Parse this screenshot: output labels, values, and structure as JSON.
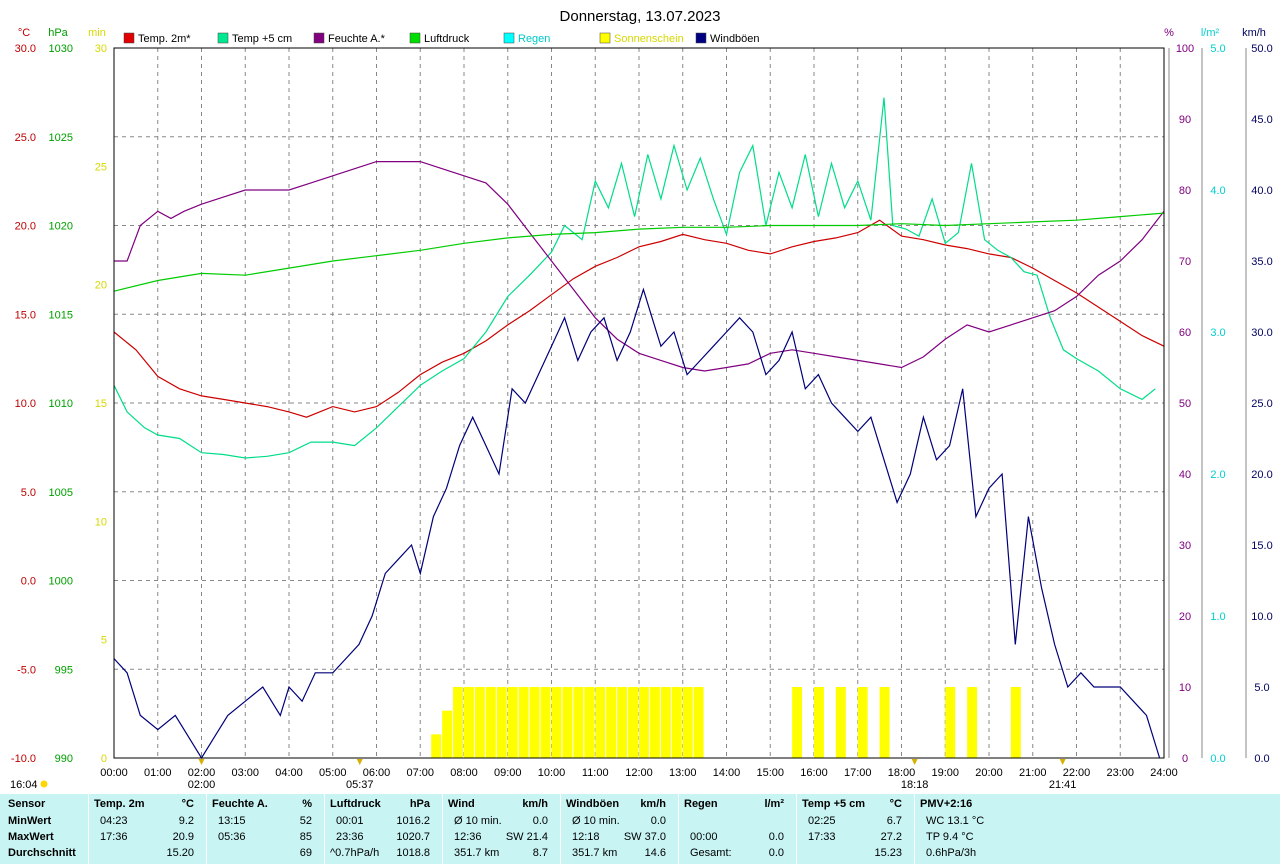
{
  "chart_data": {
    "type": "line",
    "title": "Donnerstag, 13.07.2023",
    "x_ticks": [
      "00:00",
      "01:00",
      "02:00",
      "03:00",
      "04:00",
      "05:00",
      "06:00",
      "07:00",
      "08:00",
      "09:00",
      "10:00",
      "11:00",
      "12:00",
      "13:00",
      "14:00",
      "15:00",
      "16:00",
      "17:00",
      "18:00",
      "19:00",
      "20:00",
      "21:00",
      "22:00",
      "23:00",
      "24:00"
    ],
    "xlim": [
      0,
      24
    ],
    "axes": {
      "temp": {
        "unit": "°C",
        "range": [
          -10,
          30
        ],
        "ticks": [
          "30.0",
          "25.0",
          "20.0",
          "15.0",
          "10.0",
          "5.0",
          "0.0",
          "-5.0",
          "-10.0"
        ],
        "color": "#c00000"
      },
      "pressure": {
        "unit": "hPa",
        "range": [
          990,
          1030
        ],
        "ticks": [
          "1030",
          "1025",
          "1020",
          "1015",
          "1010",
          "1005",
          "1000",
          "995",
          "990"
        ],
        "color": "#00a000"
      },
      "minutes": {
        "unit": "min",
        "range": [
          0,
          30
        ],
        "ticks": [
          "30",
          "25",
          "20",
          "15",
          "10",
          "5",
          "0"
        ],
        "color": "#d8d800"
      },
      "humidity": {
        "unit": "%",
        "range": [
          0,
          100
        ],
        "ticks": [
          "100",
          "90",
          "80",
          "70",
          "60",
          "50",
          "40",
          "30",
          "20",
          "10",
          "0"
        ],
        "color": "#800080"
      },
      "rain": {
        "unit": "l/m²",
        "range": [
          0,
          5
        ],
        "ticks": [
          "5.0",
          "4.0",
          "3.0",
          "2.0",
          "1.0",
          "0.0"
        ],
        "color": "#00d0d0"
      },
      "wind": {
        "unit": "km/h",
        "range": [
          0,
          50
        ],
        "ticks": [
          "50.0",
          "45.0",
          "40.0",
          "35.0",
          "30.0",
          "25.0",
          "20.0",
          "15.0",
          "10.0",
          "5.0",
          "0.0"
        ],
        "color": "#000060"
      }
    },
    "legend": [
      "Temp. 2m*",
      "Temp +5 cm",
      "Feuchte A.*",
      "Luftdruck",
      "Regen",
      "Sonnenschein",
      "Windböen"
    ],
    "series": [
      {
        "name": "Temp. 2m*",
        "axis": "temp",
        "color": "#cc0000",
        "x": [
          0,
          0.5,
          1,
          1.5,
          2,
          2.5,
          3,
          3.5,
          4,
          4.4,
          5,
          5.5,
          6,
          6.5,
          7,
          7.5,
          8,
          8.5,
          9,
          9.5,
          10,
          10.5,
          11,
          11.5,
          12,
          12.5,
          13,
          13.5,
          14,
          14.5,
          15,
          15.5,
          16,
          16.5,
          17,
          17.5,
          18,
          18.5,
          19,
          19.5,
          20,
          20.5,
          21,
          21.5,
          22,
          22.5,
          23,
          23.5,
          24
        ],
        "y": [
          14,
          13,
          11.5,
          10.8,
          10.4,
          10.2,
          10,
          9.8,
          9.5,
          9.2,
          9.8,
          9.5,
          9.8,
          10.6,
          11.6,
          12.3,
          12.8,
          13.5,
          14.4,
          15.2,
          16.1,
          17,
          17.7,
          18.2,
          18.8,
          19.1,
          19.5,
          19.2,
          19,
          18.6,
          18.4,
          18.8,
          19.1,
          19.3,
          19.6,
          20.3,
          19.4,
          19.2,
          18.9,
          18.7,
          18.4,
          18.2,
          17.6,
          16.9,
          16.2,
          15.4,
          14.6,
          13.8,
          13.2
        ]
      },
      {
        "name": "Temp +5 cm",
        "axis": "temp",
        "color": "#00dd88",
        "x": [
          0,
          0.3,
          0.7,
          1,
          1.5,
          2,
          2.5,
          3,
          3.5,
          4,
          4.5,
          5,
          5.5,
          6,
          6.5,
          7,
          7.5,
          8,
          8.5,
          9,
          9.5,
          10,
          10.3,
          10.7,
          11,
          11.3,
          11.6,
          11.9,
          12.2,
          12.5,
          12.8,
          13.1,
          13.4,
          13.7,
          14,
          14.3,
          14.6,
          14.9,
          15.2,
          15.5,
          15.8,
          16.1,
          16.4,
          16.7,
          17,
          17.3,
          17.6,
          17.8,
          18.1,
          18.4,
          18.7,
          19,
          19.3,
          19.6,
          19.9,
          20.2,
          20.5,
          20.8,
          21.1,
          21.4,
          21.7,
          22,
          22.5,
          23,
          23.5,
          23.8
        ],
        "y": [
          11,
          9.5,
          8.6,
          8.2,
          8,
          7.2,
          7.1,
          6.9,
          7,
          7.2,
          7.8,
          7.8,
          7.6,
          8.6,
          9.8,
          11,
          11.8,
          12.5,
          14,
          16,
          17.2,
          18.5,
          20,
          19.2,
          22.5,
          21,
          23.5,
          20.5,
          24,
          21.5,
          24.5,
          22,
          23.8,
          21.5,
          19.5,
          23,
          24.5,
          20,
          23,
          21,
          24,
          20.5,
          23.5,
          21,
          22.5,
          20.3,
          27.2,
          20,
          19.8,
          19.4,
          21.5,
          19,
          19.6,
          23.5,
          19.2,
          18.6,
          18.2,
          17.4,
          17.2,
          14.8,
          13,
          12.5,
          11.8,
          10.8,
          10.2,
          10.8
        ]
      },
      {
        "name": "Feuchte A.*",
        "axis": "humidity",
        "color": "#800080",
        "x": [
          0,
          0.3,
          0.6,
          1,
          1.3,
          1.6,
          2,
          2.5,
          3,
          3.5,
          4,
          4.5,
          5,
          5.5,
          6,
          6.5,
          7,
          7.5,
          8,
          8.5,
          9,
          9.5,
          10,
          10.5,
          11,
          11.5,
          12,
          12.5,
          13,
          13.5,
          14,
          14.5,
          15,
          15.5,
          16,
          16.5,
          17,
          17.5,
          18,
          18.5,
          19,
          19.5,
          20,
          20.5,
          21,
          21.5,
          22,
          22.5,
          23,
          23.5,
          24
        ],
        "y": [
          70,
          70,
          75,
          77,
          76,
          77,
          78,
          79,
          80,
          80,
          80,
          81,
          82,
          83,
          84,
          84,
          84,
          83,
          82,
          81,
          78,
          74,
          70,
          66,
          62,
          59,
          57,
          56,
          55,
          54.5,
          55,
          55.5,
          57,
          57.5,
          57,
          56.5,
          56,
          55.5,
          55,
          56.5,
          59,
          61,
          60,
          61,
          62,
          63,
          65,
          68,
          70,
          73,
          77
        ]
      },
      {
        "name": "Luftdruck",
        "axis": "pressure",
        "color": "#00cc00",
        "x": [
          0,
          1,
          2,
          3,
          4,
          5,
          6,
          7,
          8,
          9,
          10,
          11,
          12,
          13,
          14,
          15,
          16,
          17,
          18,
          19,
          20,
          21,
          22,
          23,
          24
        ],
        "y": [
          1016.3,
          1016.9,
          1017.3,
          1017.2,
          1017.6,
          1018,
          1018.3,
          1018.6,
          1019,
          1019.3,
          1019.5,
          1019.6,
          1019.8,
          1019.9,
          1019.9,
          1020,
          1020,
          1020,
          1020.1,
          1020,
          1020.1,
          1020.2,
          1020.3,
          1020.5,
          1020.7
        ]
      },
      {
        "name": "Windböen",
        "axis": "wind",
        "color": "#00007a",
        "x": [
          0,
          0.3,
          0.6,
          1,
          1.4,
          1.8,
          2,
          2.3,
          2.6,
          3,
          3.4,
          3.8,
          4,
          4.3,
          4.6,
          5,
          5.3,
          5.6,
          5.9,
          6.2,
          6.5,
          6.8,
          7,
          7.3,
          7.6,
          7.9,
          8.2,
          8.5,
          8.8,
          9.1,
          9.4,
          9.7,
          10,
          10.3,
          10.6,
          10.9,
          11.2,
          11.5,
          11.8,
          12.1,
          12.3,
          12.5,
          12.8,
          13.1,
          13.4,
          13.7,
          14,
          14.3,
          14.6,
          14.9,
          15.2,
          15.5,
          15.8,
          16.1,
          16.4,
          16.7,
          17,
          17.3,
          17.6,
          17.9,
          18.2,
          18.5,
          18.8,
          19.1,
          19.4,
          19.7,
          20,
          20.3,
          20.6,
          20.9,
          21.2,
          21.5,
          21.8,
          22.1,
          22.4,
          22.7,
          23,
          23.3,
          23.6,
          23.9
        ],
        "y": [
          7,
          6,
          3,
          2,
          3,
          1,
          0,
          1.5,
          3,
          4,
          5,
          3,
          5,
          4,
          6,
          6,
          7,
          8,
          10,
          13,
          14,
          15,
          13,
          17,
          19,
          22,
          24,
          22,
          20,
          26,
          25,
          27,
          29,
          31,
          28,
          30,
          31,
          28,
          30,
          33,
          31,
          29,
          30,
          27,
          28,
          29,
          30,
          31,
          30,
          27,
          28,
          30,
          26,
          27,
          25,
          24,
          23,
          24,
          21,
          18,
          20,
          24,
          21,
          22,
          26,
          17,
          19,
          20,
          8,
          17,
          12,
          8,
          5,
          6,
          5,
          5,
          5,
          4,
          3,
          0
        ]
      }
    ],
    "bars": [
      {
        "name": "Sonnenschein",
        "axis": "minutes",
        "color": "#ffff00",
        "x": [
          7.25,
          7.5,
          7.75,
          8,
          8.25,
          8.5,
          8.75,
          9,
          9.25,
          9.5,
          9.75,
          10,
          10.25,
          10.5,
          10.75,
          11,
          11.25,
          11.5,
          11.75,
          12,
          12.25,
          12.5,
          12.75,
          13,
          13.25,
          15.5,
          16,
          16.5,
          17,
          17.5,
          19,
          19.5,
          20.5
        ],
        "values": [
          1,
          2,
          3,
          3,
          3,
          3,
          3,
          3,
          3,
          3,
          3,
          3,
          3,
          3,
          3,
          3,
          3,
          3,
          3,
          3,
          3,
          3,
          3,
          3,
          3,
          3,
          3,
          3,
          3,
          3,
          3,
          3,
          3
        ]
      }
    ],
    "markers": [
      {
        "time": "02:00",
        "label": "02:00"
      },
      {
        "time": "05:37",
        "label": "05:37"
      },
      {
        "time": "18:18",
        "label": "18:18"
      },
      {
        "time": "21:41",
        "label": "21:41"
      }
    ],
    "corner_label": "16:04"
  },
  "stats": {
    "row_labels": [
      "Sensor",
      "MinWert",
      "MaxWert",
      "Durchschnitt"
    ],
    "sections": [
      {
        "title": "Temp. 2m",
        "unit": "°C",
        "min_time": "04:23",
        "min_val": "9.2",
        "max_time": "17:36",
        "max_val": "20.9",
        "avg_label": "",
        "avg_val": "15.20"
      },
      {
        "title": "Feuchte A.",
        "unit": "%",
        "min_time": "13:15",
        "min_val": "52",
        "max_time": "05:36",
        "max_val": "85",
        "avg_label": "",
        "avg_val": "69"
      },
      {
        "title": "Luftdruck",
        "unit": "hPa",
        "min_time": "00:01",
        "min_val": "1016.2",
        "max_time": "23:36",
        "max_val": "1020.7",
        "avg_label": "^0.7hPa/h",
        "avg_val": "1018.8"
      },
      {
        "title": "Wind",
        "unit": "km/h",
        "min_time": "Ø 10 min.",
        "min_val": "0.0",
        "max_time": "12:36",
        "max_mid": "SW 21.4",
        "max_val": "",
        "avg_label": "351.7 km",
        "avg_val": "8.7"
      },
      {
        "title": "Windböen",
        "unit": "km/h",
        "min_time": "Ø 10 min.",
        "min_val": "0.0",
        "max_time": "12:18",
        "max_mid": "SW 37.0",
        "max_val": "",
        "avg_label": "351.7 km",
        "avg_val": "14.6"
      },
      {
        "title": "Regen",
        "unit": "l/m²",
        "min_time": "",
        "min_val": "",
        "max_time": "00:00",
        "max_val": "0.0",
        "avg_label": "Gesamt:",
        "avg_val": "0.0"
      },
      {
        "title": "Temp +5 cm",
        "unit": "°C",
        "min_time": "02:25",
        "min_val": "6.7",
        "max_time": "17:33",
        "max_val": "27.2",
        "avg_label": "",
        "avg_val": "15.23"
      },
      {
        "title": "PMV+2:16",
        "unit": "",
        "min_time": "WC 13.1 °C",
        "min_val": "",
        "max_time": "TP 9.4 °C",
        "max_val": "",
        "avg_label": "0.6hPa/3h",
        "avg_val": ""
      }
    ]
  }
}
